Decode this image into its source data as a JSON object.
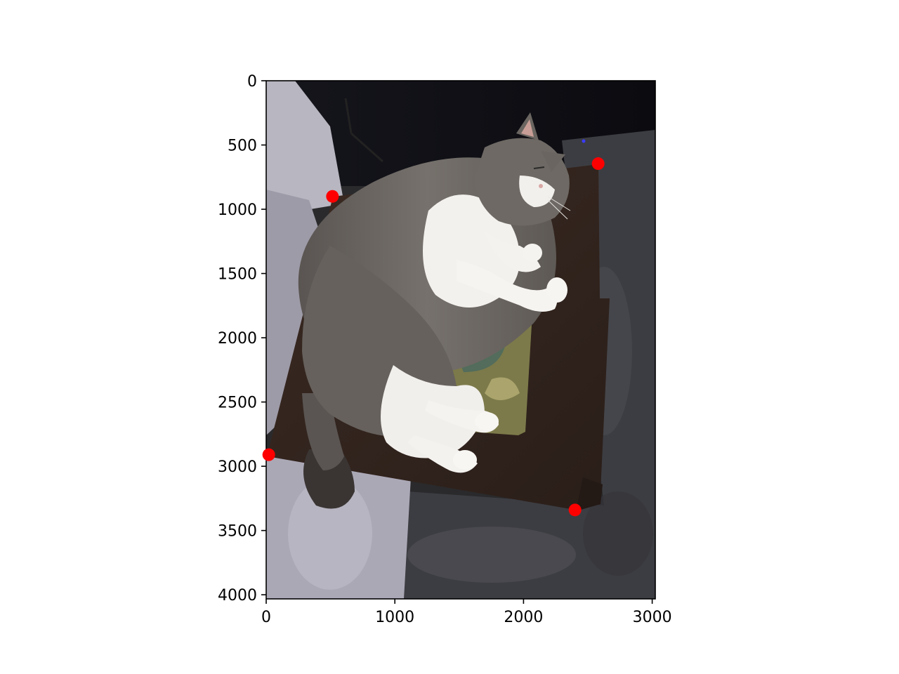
{
  "chart_data": {
    "type": "scatter",
    "title": "",
    "xlabel": "",
    "ylabel": "",
    "xlim": [
      0,
      3024
    ],
    "ylim": [
      4032,
      0
    ],
    "y_inverted": true,
    "grid": false,
    "background_image": "cat-lying-on-dark-wooden-side-table-with-patterned-placemat",
    "x_ticks": [
      {
        "value": 0,
        "label": "0"
      },
      {
        "value": 1000,
        "label": "1000"
      },
      {
        "value": 2000,
        "label": "2000"
      },
      {
        "value": 3000,
        "label": "3000"
      }
    ],
    "y_ticks": [
      {
        "value": 0,
        "label": "0"
      },
      {
        "value": 500,
        "label": "500"
      },
      {
        "value": 1000,
        "label": "1000"
      },
      {
        "value": 1500,
        "label": "1500"
      },
      {
        "value": 2000,
        "label": "2000"
      },
      {
        "value": 2500,
        "label": "2500"
      },
      {
        "value": 3000,
        "label": "3000"
      },
      {
        "value": 3500,
        "label": "3500"
      },
      {
        "value": 4000,
        "label": "4000"
      }
    ],
    "series": [
      {
        "color": "#ff0000",
        "marker": "circle",
        "points": [
          {
            "x": 515,
            "y": 900
          },
          {
            "x": 2580,
            "y": 645
          },
          {
            "x": 20,
            "y": 2910
          },
          {
            "x": 2400,
            "y": 3340
          }
        ]
      }
    ]
  }
}
